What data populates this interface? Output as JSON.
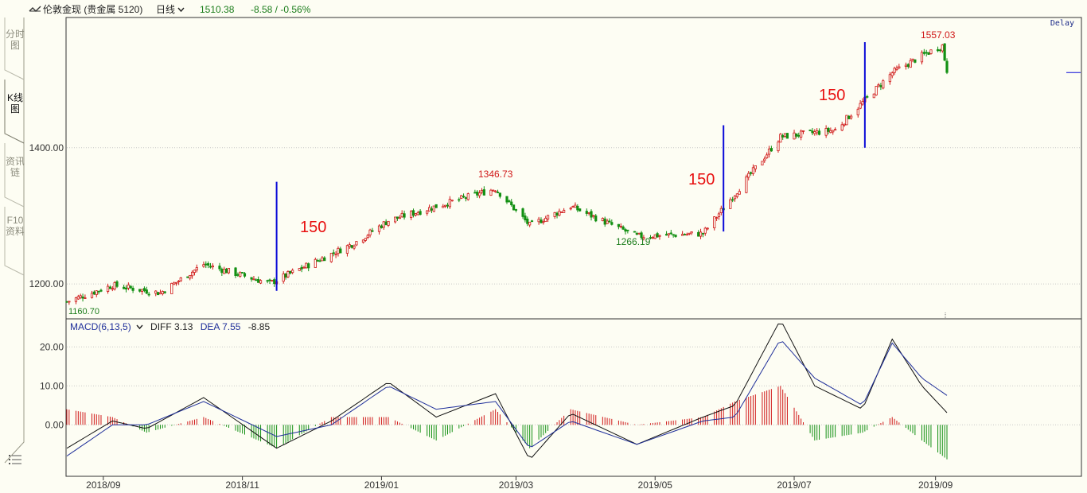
{
  "toolbar": {
    "title": "伦敦金现 (贵金属 5120)",
    "period": "日线",
    "price": "1510.38",
    "change": "-8.58 / -0.56%",
    "delay": "Delay"
  },
  "side_tabs": [
    {
      "label": "分时图",
      "active": false
    },
    {
      "label": "K线图",
      "active": true
    },
    {
      "label": "资讯链",
      "active": false
    },
    {
      "label": "F10资料",
      "active": false
    }
  ],
  "icons": {
    "toolbar": "chart-toggle-icon",
    "menu": "menu-list-icon",
    "period": "chevron-down-icon"
  },
  "colors": {
    "up": "#d01818",
    "down": "#139013",
    "diff": "#111111",
    "dea": "#1f2f9a",
    "marker": "#0a0ad8",
    "annotation": "#e81010",
    "grid": "#c8c8c8"
  },
  "annotations": [
    "150",
    "150",
    "150"
  ],
  "chart_data": [
    {
      "type": "candlestick",
      "title": "",
      "y_ticks": [
        "1400.00",
        "1200.00"
      ],
      "ylim": [
        1150,
        1590
      ],
      "x_ticks": [
        "2018/09",
        "2018/11",
        "2019/01",
        "2019/03",
        "2019/05",
        "2019/07",
        "2019/09"
      ],
      "labeled_points": [
        {
          "label": "1346.73",
          "kind": "high"
        },
        {
          "label": "1266.19",
          "kind": "low"
        },
        {
          "label": "1557.03",
          "kind": "high"
        },
        {
          "label": "1160.70",
          "kind": "low"
        }
      ],
      "marker_lines": [
        {
          "x": "2018-11-16",
          "y_from": 1190,
          "y_to": 1350
        },
        {
          "x": "2019-05-31",
          "y_from": 1277,
          "y_to": 1433
        },
        {
          "x": "2019-08-01",
          "y_from": 1400,
          "y_to": 1555
        }
      ],
      "key_closes": [
        {
          "x": "2018-08-16",
          "close": 1174
        },
        {
          "x": "2018-09-05",
          "close": 1198
        },
        {
          "x": "2018-09-26",
          "close": 1187
        },
        {
          "x": "2018-10-15",
          "close": 1229
        },
        {
          "x": "2018-11-13",
          "close": 1201
        },
        {
          "x": "2018-12-20",
          "close": 1260
        },
        {
          "x": "2019-01-04",
          "close": 1293
        },
        {
          "x": "2019-02-20",
          "close": 1340
        },
        {
          "x": "2019-03-07",
          "close": 1286
        },
        {
          "x": "2019-03-25",
          "close": 1314
        },
        {
          "x": "2019-04-23",
          "close": 1270
        },
        {
          "x": "2019-05-22",
          "close": 1274
        },
        {
          "x": "2019-06-25",
          "close": 1416
        },
        {
          "x": "2019-07-19",
          "close": 1426
        },
        {
          "x": "2019-08-13",
          "close": 1510
        },
        {
          "x": "2019-08-26",
          "close": 1535
        },
        {
          "x": "2019-09-04",
          "close": 1550
        },
        {
          "x": "2019-09-06",
          "close": 1510.38
        }
      ]
    },
    {
      "type": "line",
      "title": "MACD(6,13,5)",
      "y_ticks": [
        "20.00",
        "10.00",
        "0.00"
      ],
      "ylim": [
        -13,
        27
      ],
      "readout": {
        "diff": "DIFF 3.13",
        "dea": "DEA 7.55",
        "macd": "-8.85"
      },
      "series": [
        {
          "name": "DIFF",
          "x": [
            "2018-08-16",
            "2018-09-05",
            "2018-09-20",
            "2018-10-15",
            "2018-11-16",
            "2018-12-10",
            "2019-01-04",
            "2019-01-25",
            "2019-02-20",
            "2019-03-07",
            "2019-03-25",
            "2019-04-23",
            "2019-05-22",
            "2019-06-05",
            "2019-06-25",
            "2019-07-10",
            "2019-07-31",
            "2019-08-13",
            "2019-08-26",
            "2019-09-06"
          ],
          "values": [
            -6,
            1,
            -1,
            7,
            -6,
            1,
            11,
            2,
            8,
            -9,
            3,
            -5,
            2,
            5,
            27,
            10,
            4,
            22,
            10,
            3.13
          ]
        },
        {
          "name": "DEA",
          "x": [
            "2018-08-16",
            "2018-09-05",
            "2018-09-20",
            "2018-10-15",
            "2018-11-16",
            "2018-12-10",
            "2019-01-04",
            "2019-01-25",
            "2019-02-20",
            "2019-03-07",
            "2019-03-25",
            "2019-04-23",
            "2019-05-22",
            "2019-06-05",
            "2019-06-25",
            "2019-07-10",
            "2019-07-31",
            "2019-08-13",
            "2019-08-26",
            "2019-09-06"
          ],
          "values": [
            -8,
            0,
            0,
            6,
            -3,
            0,
            10,
            4,
            6,
            -6,
            1,
            -5,
            1,
            2,
            22,
            12,
            5,
            21,
            12,
            7.55
          ]
        }
      ]
    }
  ]
}
